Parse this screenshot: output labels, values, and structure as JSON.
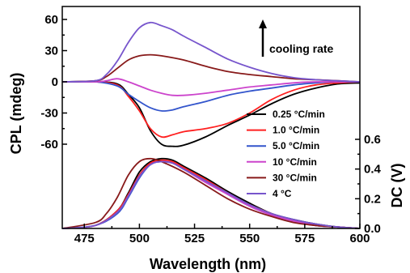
{
  "chart_data": {
    "type": "line",
    "xlabel": "Wavelength (nm)",
    "ylabel_left": "CPL (mdeg)",
    "ylabel_right": "DC (V)",
    "xlim": [
      465,
      600
    ],
    "ylim_left": [
      -75,
      65
    ],
    "ylim_right": [
      0,
      0.78
    ],
    "x_ticks": [
      "475",
      "500",
      "525",
      "550",
      "575",
      "600"
    ],
    "y_left_ticks": [
      "60",
      "30",
      "0",
      "-30",
      "-60"
    ],
    "y_right_ticks": [
      "0.6",
      "0.4",
      "0.2",
      "0.0"
    ],
    "annotation": "cooling rate",
    "legend_position": "right",
    "series": [
      {
        "name": "0.25 °C/min",
        "color": "#000000",
        "cpl": [
          [
            465,
            0
          ],
          [
            480,
            0
          ],
          [
            490,
            -2
          ],
          [
            495,
            -12
          ],
          [
            500,
            -25
          ],
          [
            505,
            -47
          ],
          [
            510,
            -60
          ],
          [
            515,
            -62
          ],
          [
            520,
            -61
          ],
          [
            530,
            -53
          ],
          [
            540,
            -42
          ],
          [
            550,
            -32
          ],
          [
            560,
            -21
          ],
          [
            570,
            -12
          ],
          [
            580,
            -6
          ],
          [
            590,
            -2
          ],
          [
            600,
            -1
          ]
        ],
        "dc": [
          [
            465,
            0
          ],
          [
            480,
            0.02
          ],
          [
            490,
            0.12
          ],
          [
            495,
            0.24
          ],
          [
            500,
            0.38
          ],
          [
            505,
            0.45
          ],
          [
            510,
            0.47
          ],
          [
            515,
            0.46
          ],
          [
            520,
            0.42
          ],
          [
            530,
            0.34
          ],
          [
            540,
            0.25
          ],
          [
            550,
            0.17
          ],
          [
            560,
            0.1
          ],
          [
            570,
            0.06
          ],
          [
            580,
            0.03
          ],
          [
            590,
            0.01
          ],
          [
            600,
            0
          ]
        ]
      },
      {
        "name": "1.0 °C/min",
        "color": "#ff2020",
        "cpl": [
          [
            465,
            0
          ],
          [
            480,
            0
          ],
          [
            490,
            -3
          ],
          [
            495,
            -14
          ],
          [
            500,
            -28
          ],
          [
            505,
            -45
          ],
          [
            510,
            -53
          ],
          [
            515,
            -51
          ],
          [
            520,
            -48
          ],
          [
            530,
            -45
          ],
          [
            540,
            -40
          ],
          [
            550,
            -30
          ],
          [
            560,
            -17
          ],
          [
            570,
            -8
          ],
          [
            580,
            -3
          ],
          [
            590,
            -1
          ],
          [
            600,
            0
          ]
        ],
        "dc": [
          [
            465,
            0
          ],
          [
            480,
            0.02
          ],
          [
            490,
            0.12
          ],
          [
            495,
            0.23
          ],
          [
            500,
            0.36
          ],
          [
            505,
            0.44
          ],
          [
            510,
            0.46
          ],
          [
            515,
            0.45
          ],
          [
            520,
            0.41
          ],
          [
            530,
            0.33
          ],
          [
            540,
            0.24
          ],
          [
            550,
            0.16
          ],
          [
            560,
            0.1
          ],
          [
            570,
            0.05
          ],
          [
            580,
            0.02
          ],
          [
            590,
            0.01
          ],
          [
            600,
            0
          ]
        ]
      },
      {
        "name": "5.0 °C/min",
        "color": "#3355cc",
        "cpl": [
          [
            465,
            0
          ],
          [
            480,
            0
          ],
          [
            490,
            -4
          ],
          [
            495,
            -12
          ],
          [
            500,
            -19
          ],
          [
            505,
            -25
          ],
          [
            510,
            -28
          ],
          [
            515,
            -27
          ],
          [
            520,
            -24
          ],
          [
            530,
            -19
          ],
          [
            540,
            -13
          ],
          [
            550,
            -9
          ],
          [
            560,
            -6
          ],
          [
            570,
            -3
          ],
          [
            580,
            -1
          ],
          [
            590,
            0
          ],
          [
            600,
            0
          ]
        ],
        "dc": [
          [
            465,
            0
          ],
          [
            480,
            0.02
          ],
          [
            490,
            0.1
          ],
          [
            495,
            0.21
          ],
          [
            500,
            0.34
          ],
          [
            505,
            0.43
          ],
          [
            510,
            0.45
          ],
          [
            515,
            0.44
          ],
          [
            520,
            0.4
          ],
          [
            530,
            0.32
          ],
          [
            540,
            0.23
          ],
          [
            550,
            0.15
          ],
          [
            560,
            0.09
          ],
          [
            570,
            0.05
          ],
          [
            580,
            0.02
          ],
          [
            590,
            0.01
          ],
          [
            600,
            0
          ]
        ]
      },
      {
        "name": "10 °C/min",
        "color": "#cc44cc",
        "cpl": [
          [
            465,
            0
          ],
          [
            480,
            0
          ],
          [
            485,
            1
          ],
          [
            490,
            3
          ],
          [
            495,
            0
          ],
          [
            500,
            -4
          ],
          [
            505,
            -8
          ],
          [
            510,
            -11
          ],
          [
            515,
            -13
          ],
          [
            520,
            -13
          ],
          [
            530,
            -11
          ],
          [
            540,
            -8
          ],
          [
            550,
            -5
          ],
          [
            560,
            -3
          ],
          [
            570,
            -1
          ],
          [
            580,
            0
          ],
          [
            600,
            0
          ]
        ],
        "dc": [
          [
            465,
            0
          ],
          [
            480,
            0.02
          ],
          [
            490,
            0.11
          ],
          [
            495,
            0.22
          ],
          [
            500,
            0.35
          ],
          [
            505,
            0.43
          ],
          [
            510,
            0.45
          ],
          [
            515,
            0.44
          ],
          [
            520,
            0.4
          ],
          [
            530,
            0.31
          ],
          [
            540,
            0.23
          ],
          [
            550,
            0.15
          ],
          [
            560,
            0.09
          ],
          [
            570,
            0.05
          ],
          [
            580,
            0.02
          ],
          [
            590,
            0.01
          ],
          [
            600,
            0
          ]
        ]
      },
      {
        "name": "30 °C/min",
        "color": "#881a1a",
        "cpl": [
          [
            465,
            0
          ],
          [
            480,
            1
          ],
          [
            485,
            5
          ],
          [
            490,
            13
          ],
          [
            495,
            21
          ],
          [
            500,
            25
          ],
          [
            505,
            26
          ],
          [
            510,
            25
          ],
          [
            520,
            21
          ],
          [
            530,
            15
          ],
          [
            540,
            10
          ],
          [
            550,
            7
          ],
          [
            560,
            5
          ],
          [
            570,
            3
          ],
          [
            580,
            2
          ],
          [
            590,
            1
          ],
          [
            600,
            0
          ]
        ],
        "dc": [
          [
            465,
            0
          ],
          [
            480,
            0.04
          ],
          [
            485,
            0.1
          ],
          [
            490,
            0.21
          ],
          [
            495,
            0.36
          ],
          [
            500,
            0.45
          ],
          [
            505,
            0.47
          ],
          [
            510,
            0.45
          ],
          [
            520,
            0.38
          ],
          [
            530,
            0.29
          ],
          [
            540,
            0.2
          ],
          [
            550,
            0.13
          ],
          [
            560,
            0.08
          ],
          [
            570,
            0.04
          ],
          [
            580,
            0.02
          ],
          [
            590,
            0.01
          ],
          [
            600,
            0
          ]
        ]
      },
      {
        "name": "4 °C",
        "color": "#7755cc",
        "cpl": [
          [
            465,
            0
          ],
          [
            480,
            1
          ],
          [
            485,
            7
          ],
          [
            490,
            20
          ],
          [
            495,
            38
          ],
          [
            500,
            52
          ],
          [
            505,
            57
          ],
          [
            510,
            54
          ],
          [
            515,
            50
          ],
          [
            520,
            44
          ],
          [
            530,
            33
          ],
          [
            540,
            22
          ],
          [
            550,
            14
          ],
          [
            560,
            8
          ],
          [
            570,
            4
          ],
          [
            580,
            2
          ],
          [
            590,
            1
          ],
          [
            600,
            0
          ]
        ],
        "dc": [
          [
            465,
            0
          ],
          [
            480,
            0.02
          ],
          [
            490,
            0.11
          ],
          [
            495,
            0.22
          ],
          [
            500,
            0.35
          ],
          [
            505,
            0.43
          ],
          [
            510,
            0.45
          ],
          [
            515,
            0.44
          ],
          [
            520,
            0.4
          ],
          [
            530,
            0.32
          ],
          [
            540,
            0.24
          ],
          [
            550,
            0.16
          ],
          [
            560,
            0.1
          ],
          [
            570,
            0.06
          ],
          [
            580,
            0.03
          ],
          [
            590,
            0.01
          ],
          [
            600,
            0
          ]
        ]
      }
    ]
  }
}
